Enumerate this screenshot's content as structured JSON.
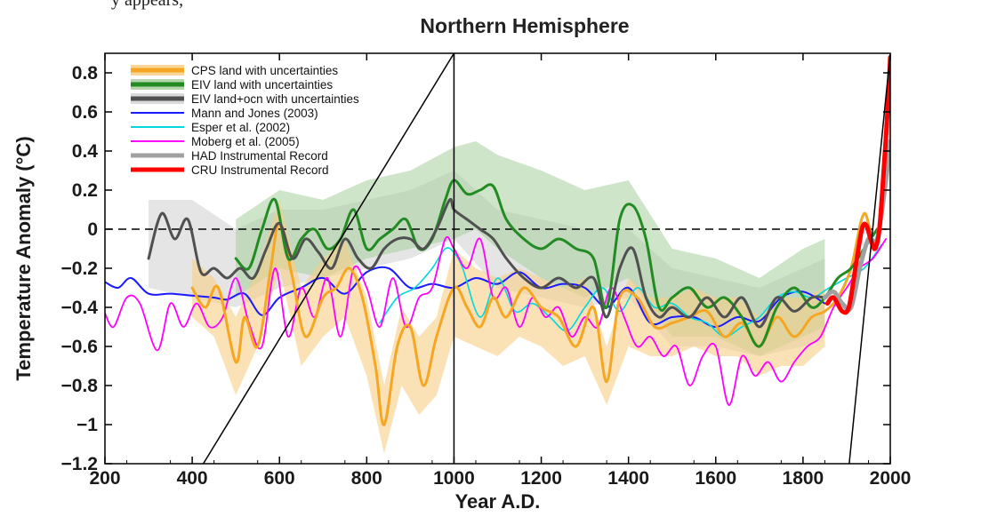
{
  "page": {
    "top_fragment": "y appears,",
    "title": "Northern Hemisphere"
  },
  "chart_data": {
    "type": "line",
    "title": "Northern Hemisphere",
    "xlabel": "Year A.D.",
    "ylabel": "Temperature Anomaly (°C)",
    "xlim": [
      200,
      2000
    ],
    "ylim": [
      -1.2,
      0.9
    ],
    "x_ticks": [
      200,
      400,
      600,
      800,
      1000,
      1200,
      1400,
      1600,
      1800,
      2000
    ],
    "y_ticks": [
      0.8,
      0.6,
      0.4,
      0.2,
      0,
      -0.2,
      -0.4,
      -0.6,
      -0.8,
      -1,
      -1.2
    ],
    "y_tick_labels": [
      "0.8",
      "0.6",
      "0.4",
      "0.2",
      "0",
      "−0.2",
      "−0.4",
      "−0.6",
      "−0.8",
      "−1",
      "−1.2"
    ],
    "legend_position": "top-left",
    "zero_line": "dashed",
    "bands": [
      {
        "name": "EIV land+ocn uncertainty",
        "color": "#d3d3d3",
        "opacity": 0.6,
        "x": [
          300,
          400,
          500,
          600,
          700,
          800,
          900,
          1000,
          1100,
          1200,
          1300,
          1400,
          1500,
          1600,
          1700,
          1800,
          1850
        ],
        "lower": [
          -0.3,
          -0.35,
          -0.4,
          -0.3,
          -0.25,
          -0.2,
          -0.15,
          -0.05,
          -0.3,
          -0.35,
          -0.4,
          -0.35,
          -0.6,
          -0.6,
          -0.65,
          -0.6,
          -0.55
        ],
        "upper": [
          0.15,
          0.15,
          0.0,
          0.1,
          0.1,
          0.15,
          0.2,
          0.3,
          0.1,
          0.05,
          0.0,
          0.0,
          -0.2,
          -0.25,
          -0.3,
          -0.2,
          -0.15
        ]
      },
      {
        "name": "EIV land uncertainty",
        "color": "#a8cf9e",
        "opacity": 0.55,
        "x": [
          500,
          600,
          700,
          800,
          900,
          1000,
          1050,
          1100,
          1200,
          1300,
          1400,
          1500,
          1600,
          1700,
          1800,
          1850
        ],
        "lower": [
          -0.35,
          -0.2,
          -0.25,
          -0.15,
          -0.1,
          -0.05,
          0.0,
          -0.1,
          -0.25,
          -0.35,
          -0.25,
          -0.55,
          -0.55,
          -0.65,
          -0.55,
          -0.5
        ],
        "upper": [
          0.05,
          0.2,
          0.15,
          0.25,
          0.3,
          0.42,
          0.45,
          0.38,
          0.3,
          0.2,
          0.25,
          -0.1,
          -0.15,
          -0.25,
          -0.1,
          -0.05
        ]
      },
      {
        "name": "CPS land uncertainty",
        "color": "#f7cf85",
        "opacity": 0.6,
        "x": [
          400,
          450,
          500,
          550,
          600,
          650,
          700,
          750,
          800,
          840,
          880,
          920,
          960,
          1000,
          1050,
          1100,
          1150,
          1200,
          1250,
          1300,
          1350,
          1400,
          1450,
          1500,
          1550,
          1600,
          1650,
          1700,
          1750,
          1800,
          1850
        ],
        "lower": [
          -0.45,
          -0.55,
          -0.85,
          -0.6,
          -0.2,
          -0.7,
          -0.55,
          -0.45,
          -0.75,
          -1.15,
          -0.8,
          -0.95,
          -0.85,
          -0.55,
          -0.6,
          -0.65,
          -0.55,
          -0.6,
          -0.7,
          -0.65,
          -0.9,
          -0.6,
          -0.65,
          -0.65,
          -0.6,
          -0.65,
          -0.65,
          -0.75,
          -0.7,
          -0.7,
          -0.6
        ]
      },
      {
        "name": "CPS land uncertainty upper",
        "color": "#f7cf85",
        "opacity": 0.6,
        "x": [
          400,
          450,
          500,
          550,
          600,
          650,
          700,
          750,
          800,
          840,
          880,
          920,
          960,
          1000,
          1050,
          1100,
          1150,
          1200,
          1250,
          1300,
          1350,
          1400,
          1450,
          1500,
          1550,
          1600,
          1650,
          1700,
          1750,
          1800,
          1850
        ],
        "upper": [
          -0.15,
          -0.25,
          -0.45,
          -0.2,
          0.15,
          -0.3,
          -0.15,
          -0.05,
          -0.35,
          -0.8,
          -0.4,
          -0.55,
          -0.45,
          -0.1,
          -0.2,
          -0.25,
          -0.2,
          -0.25,
          -0.3,
          -0.25,
          -0.6,
          -0.25,
          -0.35,
          -0.35,
          -0.3,
          -0.35,
          -0.35,
          -0.45,
          -0.35,
          -0.35,
          -0.3
        ]
      }
    ],
    "series": [
      {
        "name": "Mann and Jones (2003)",
        "color": "#1a1aff",
        "width": 2,
        "x": [
          200,
          230,
          260,
          300,
          350,
          400,
          450,
          480,
          520,
          560,
          600,
          650,
          700,
          750,
          800,
          850,
          900,
          950,
          1000,
          1050,
          1100,
          1150,
          1200,
          1250,
          1300,
          1350,
          1400,
          1450,
          1500,
          1550,
          1600,
          1650,
          1700,
          1750,
          1800,
          1850
        ],
        "y": [
          -0.27,
          -0.3,
          -0.25,
          -0.33,
          -0.33,
          -0.34,
          -0.35,
          -0.36,
          -0.33,
          -0.44,
          -0.35,
          -0.3,
          -0.25,
          -0.33,
          -0.22,
          -0.2,
          -0.3,
          -0.28,
          -0.3,
          -0.25,
          -0.28,
          -0.22,
          -0.3,
          -0.28,
          -0.3,
          -0.4,
          -0.3,
          -0.48,
          -0.45,
          -0.45,
          -0.5,
          -0.45,
          -0.47,
          -0.35,
          -0.32,
          -0.38
        ]
      },
      {
        "name": "Esper et al. (2002)",
        "color": "#00d8e0",
        "width": 1.6,
        "x": [
          830,
          870,
          910,
          950,
          980,
          1000,
          1020,
          1060,
          1100,
          1140,
          1180,
          1220,
          1260,
          1300,
          1340,
          1380,
          1420,
          1460,
          1500,
          1540,
          1580,
          1620,
          1660,
          1700,
          1740,
          1780,
          1820,
          1860,
          1900,
          1940,
          1980
        ],
        "y": [
          -0.48,
          -0.35,
          -0.3,
          -0.2,
          -0.1,
          -0.12,
          -0.2,
          -0.45,
          -0.25,
          -0.42,
          -0.38,
          -0.45,
          -0.52,
          -0.4,
          -0.3,
          -0.42,
          -0.3,
          -0.4,
          -0.38,
          -0.45,
          -0.48,
          -0.55,
          -0.5,
          -0.45,
          -0.35,
          -0.32,
          -0.35,
          -0.3,
          -0.25,
          -0.2,
          -0.08
        ]
      },
      {
        "name": "Moberg et al. (2005)",
        "color": "#ff00ff",
        "width": 1.8,
        "x": [
          200,
          220,
          250,
          280,
          320,
          350,
          380,
          410,
          440,
          470,
          500,
          530,
          560,
          590,
          620,
          650,
          680,
          710,
          740,
          770,
          800,
          830,
          860,
          890,
          920,
          950,
          980,
          1000,
          1030,
          1060,
          1090,
          1120,
          1150,
          1180,
          1210,
          1240,
          1270,
          1300,
          1330,
          1360,
          1390,
          1420,
          1450,
          1480,
          1510,
          1540,
          1570,
          1600,
          1630,
          1660,
          1690,
          1720,
          1750,
          1780,
          1810,
          1840,
          1870,
          1900,
          1930,
          1960,
          1990
        ],
        "y": [
          -0.43,
          -0.5,
          -0.35,
          -0.38,
          -0.62,
          -0.38,
          -0.5,
          -0.38,
          -0.5,
          -0.45,
          -0.25,
          -0.48,
          -0.6,
          -0.2,
          -0.55,
          -0.3,
          -0.45,
          -0.25,
          -0.55,
          -0.2,
          -0.3,
          -0.5,
          -0.25,
          -0.5,
          -0.35,
          -0.3,
          -0.05,
          -0.1,
          -0.2,
          -0.05,
          -0.35,
          -0.3,
          -0.5,
          -0.35,
          -0.45,
          -0.4,
          -0.55,
          -0.45,
          -0.5,
          -0.3,
          -0.45,
          -0.6,
          -0.55,
          -0.65,
          -0.6,
          -0.8,
          -0.65,
          -0.6,
          -0.9,
          -0.65,
          -0.75,
          -0.68,
          -0.78,
          -0.68,
          -0.6,
          -0.55,
          -0.4,
          -0.3,
          -0.2,
          -0.15,
          -0.05
        ]
      },
      {
        "name": "CPS land with uncertainties",
        "color": "#f5a623",
        "width": 3,
        "x": [
          400,
          430,
          460,
          500,
          520,
          550,
          580,
          600,
          630,
          660,
          700,
          730,
          760,
          790,
          820,
          840,
          870,
          900,
          930,
          960,
          1000,
          1030,
          1060,
          1090,
          1120,
          1160,
          1200,
          1240,
          1280,
          1320,
          1350,
          1380,
          1420,
          1460,
          1500,
          1540,
          1580,
          1620,
          1660,
          1700,
          1740,
          1780,
          1820,
          1850,
          1880,
          1910,
          1940,
          1970,
          2000
        ],
        "y": [
          -0.3,
          -0.4,
          -0.3,
          -0.68,
          -0.45,
          -0.6,
          -0.2,
          0.03,
          -0.25,
          -0.55,
          -0.35,
          -0.3,
          -0.2,
          -0.35,
          -0.7,
          -1.0,
          -0.6,
          -0.5,
          -0.8,
          -0.55,
          -0.3,
          -0.4,
          -0.5,
          -0.35,
          -0.45,
          -0.3,
          -0.4,
          -0.45,
          -0.6,
          -0.4,
          -0.78,
          -0.35,
          -0.35,
          -0.5,
          -0.48,
          -0.45,
          -0.42,
          -0.55,
          -0.48,
          -0.6,
          -0.45,
          -0.55,
          -0.45,
          -0.42,
          -0.35,
          -0.2,
          0.08,
          -0.05,
          0.85
        ]
      },
      {
        "name": "EIV land with uncertainties",
        "color": "#228b22",
        "width": 3,
        "x": [
          500,
          530,
          560,
          590,
          620,
          650,
          680,
          710,
          740,
          770,
          800,
          830,
          860,
          890,
          920,
          950,
          980,
          1000,
          1030,
          1060,
          1090,
          1120,
          1160,
          1200,
          1240,
          1280,
          1320,
          1350,
          1380,
          1410,
          1440,
          1470,
          1500,
          1540,
          1580,
          1620,
          1660,
          1700,
          1740,
          1780,
          1820,
          1850,
          1880,
          1910,
          1940,
          1970
        ],
        "y": [
          -0.15,
          -0.2,
          0.0,
          0.15,
          -0.15,
          -0.05,
          0.0,
          -0.1,
          -0.05,
          0.1,
          -0.1,
          -0.05,
          0.0,
          0.05,
          -0.1,
          -0.05,
          0.15,
          0.25,
          0.18,
          0.2,
          0.22,
          0.05,
          -0.05,
          -0.1,
          -0.05,
          -0.1,
          -0.15,
          -0.4,
          0.05,
          0.12,
          -0.05,
          -0.4,
          -0.35,
          -0.3,
          -0.4,
          -0.35,
          -0.45,
          -0.6,
          -0.4,
          -0.3,
          -0.4,
          -0.35,
          -0.25,
          -0.2,
          -0.1,
          0.0
        ]
      },
      {
        "name": "EIV land+ocn with uncertainties",
        "color": "#505050",
        "width": 3,
        "x": [
          300,
          330,
          360,
          390,
          420,
          450,
          480,
          510,
          540,
          570,
          600,
          630,
          660,
          690,
          720,
          750,
          780,
          810,
          840,
          870,
          900,
          930,
          960,
          990,
          1000,
          1030,
          1060,
          1090,
          1120,
          1160,
          1200,
          1240,
          1280,
          1320,
          1350,
          1380,
          1410,
          1440,
          1470,
          1500,
          1540,
          1580,
          1620,
          1660,
          1700,
          1740,
          1780,
          1820,
          1850
        ],
        "y": [
          -0.15,
          0.08,
          -0.05,
          0.05,
          -0.22,
          -0.2,
          -0.25,
          -0.2,
          -0.25,
          -0.1,
          0.03,
          -0.15,
          -0.05,
          -0.12,
          -0.2,
          -0.05,
          -0.15,
          -0.2,
          -0.1,
          -0.05,
          -0.05,
          -0.1,
          0.0,
          0.15,
          0.1,
          0.05,
          0.0,
          -0.05,
          -0.15,
          -0.25,
          -0.3,
          -0.25,
          -0.3,
          -0.25,
          -0.45,
          -0.2,
          -0.1,
          -0.35,
          -0.45,
          -0.4,
          -0.45,
          -0.35,
          -0.45,
          -0.35,
          -0.5,
          -0.35,
          -0.42,
          -0.35,
          -0.35
        ]
      },
      {
        "name": "HAD Instrumental Record",
        "color": "#a0a0a0",
        "width": 5,
        "x": [
          1850,
          1870,
          1890,
          1910,
          1930,
          1950,
          1970,
          1990,
          2000
        ],
        "y": [
          -0.35,
          -0.32,
          -0.38,
          -0.4,
          -0.2,
          -0.05,
          -0.05,
          0.25,
          0.45
        ]
      },
      {
        "name": "CRU Instrumental Record",
        "color": "#ff0000",
        "width": 5,
        "x": [
          1856,
          1870,
          1890,
          1905,
          1920,
          1935,
          1945,
          1955,
          1965,
          1975,
          1985,
          1995,
          2000
        ],
        "y": [
          -0.38,
          -0.35,
          -0.42,
          -0.4,
          -0.2,
          0.0,
          0.02,
          -0.05,
          -0.1,
          0.0,
          0.3,
          0.65,
          0.88
        ]
      }
    ],
    "legend": [
      {
        "label": "CPS land with uncertainties",
        "color": "#f5a623",
        "band": "#f7cf85"
      },
      {
        "label": "EIV land with uncertainties",
        "color": "#228b22",
        "band": "#a8cf9e"
      },
      {
        "label": "EIV land+ocn with uncertainties",
        "color": "#505050",
        "band": "#d3d3d3"
      },
      {
        "label": "Mann and Jones (2003)",
        "color": "#1a1aff"
      },
      {
        "label": "Esper et al. (2002)",
        "color": "#00d8e0"
      },
      {
        "label": "Moberg et al. (2005)",
        "color": "#ff00ff"
      },
      {
        "label": "HAD Instrumental Record",
        "color": "#a0a0a0"
      },
      {
        "label": "CRU Instrumental Record",
        "color": "#ff0000"
      }
    ],
    "overlay_lines": [
      {
        "name": "rising diagonal line",
        "points": [
          [
            420,
            -1.22
          ],
          [
            1000,
            0.9
          ]
        ],
        "color": "#000000"
      },
      {
        "name": "vertical line at 1000",
        "points": [
          [
            1000,
            -1.2
          ],
          [
            1000,
            0.9
          ]
        ],
        "color": "#000000"
      },
      {
        "name": "steep line near 1900",
        "points": [
          [
            1905,
            -1.22
          ],
          [
            2000,
            0.9
          ]
        ],
        "color": "#000000"
      }
    ]
  }
}
